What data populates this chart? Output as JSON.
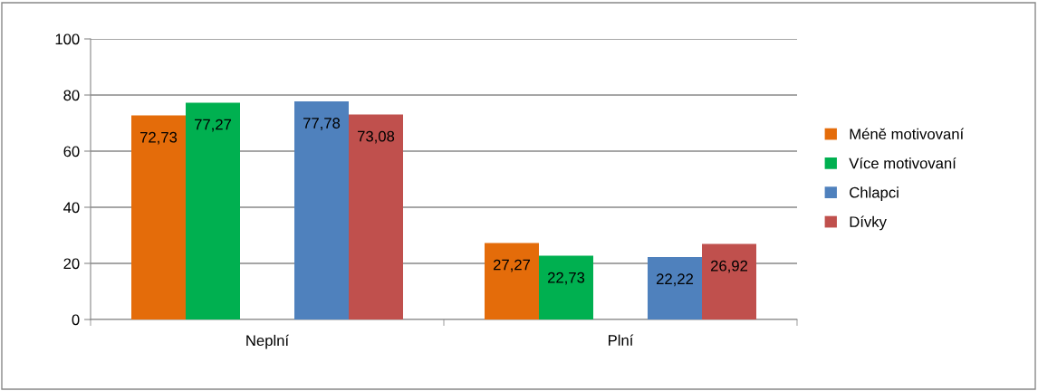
{
  "chart_data": {
    "type": "bar",
    "categories": [
      "Neplní",
      "Plní"
    ],
    "series": [
      {
        "name": "Méně motivovaní",
        "color": "#e46c0a",
        "values": [
          72.73,
          27.27
        ],
        "value_labels": [
          "72,73",
          "27,27"
        ]
      },
      {
        "name": "Více motivovaní",
        "color": "#00b050",
        "values": [
          77.27,
          22.73
        ],
        "value_labels": [
          "77,27",
          "22,73"
        ]
      },
      {
        "values": [
          null,
          null
        ]
      },
      {
        "name": "Chlapci",
        "color": "#4f81bd",
        "values": [
          77.78,
          22.22
        ],
        "value_labels": [
          "77,78",
          "22,22"
        ]
      },
      {
        "name": "Dívky",
        "color": "#c0504d",
        "values": [
          73.08,
          26.92
        ],
        "value_labels": [
          "73,08",
          "26,92"
        ]
      }
    ],
    "ylim": [
      0,
      100
    ],
    "yticks": [
      0,
      20,
      40,
      60,
      80,
      100
    ],
    "grid": "y",
    "legend": "right"
  }
}
